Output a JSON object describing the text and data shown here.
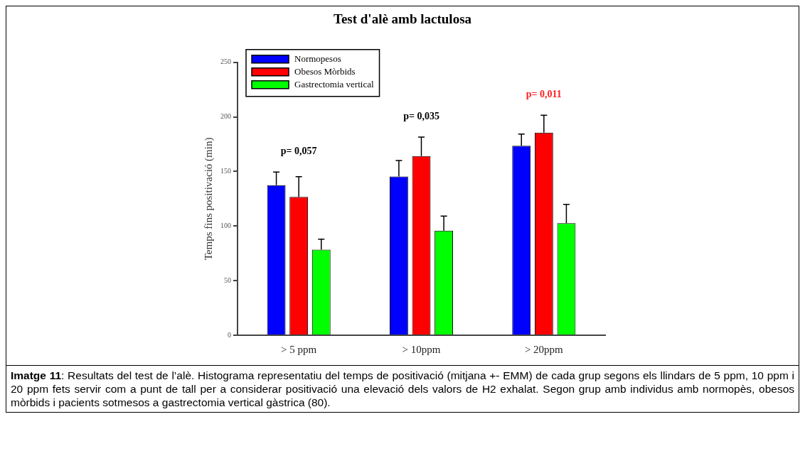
{
  "chart_data": {
    "type": "bar",
    "title": "Test d'alè amb lactulosa",
    "ylabel": "Temps fins positivació (min)",
    "categories": [
      "> 5 ppm",
      "> 10ppm",
      "> 20ppm"
    ],
    "series": [
      {
        "name": "Normopesos",
        "color": "#0000ff",
        "values": [
          137.5,
          145.5,
          173.6
        ],
        "errors": [
          12,
          14.5,
          10.7
        ]
      },
      {
        "name": "Obesos Mòrbids",
        "color": "#ff0000",
        "values": [
          126.8,
          164.2,
          185.6
        ],
        "errors": [
          18.5,
          17.4,
          16
        ]
      },
      {
        "name": "Gastrectomia vertical",
        "color": "#00ff00",
        "values": [
          78.4,
          95.8,
          102.7
        ],
        "errors": [
          9.6,
          13.4,
          17.2
        ]
      }
    ],
    "ylim": [
      0,
      250
    ],
    "yticks": [
      0,
      50,
      100,
      150,
      200,
      250
    ],
    "grid": false,
    "legend": "top left",
    "annotations": [
      "p= 0,057",
      "p= 0,035",
      "p= 0,011",
      "Imatge 11: Resultats del test de l’alè. Histograma representatiu del temps de positivació (mitjana +- EMM) de cada grup segons els llindars de 5 ppm, 10 ppm i 20 ppm fets servir com a punt de tall per a considerar positivació una elevació dels valors de H2 exhalat. Segon grup amb individus amb normopès, obesos mòrbids i pacients sotmesos a gastrectomia vertical gàstrica (80)."
    ]
  }
}
